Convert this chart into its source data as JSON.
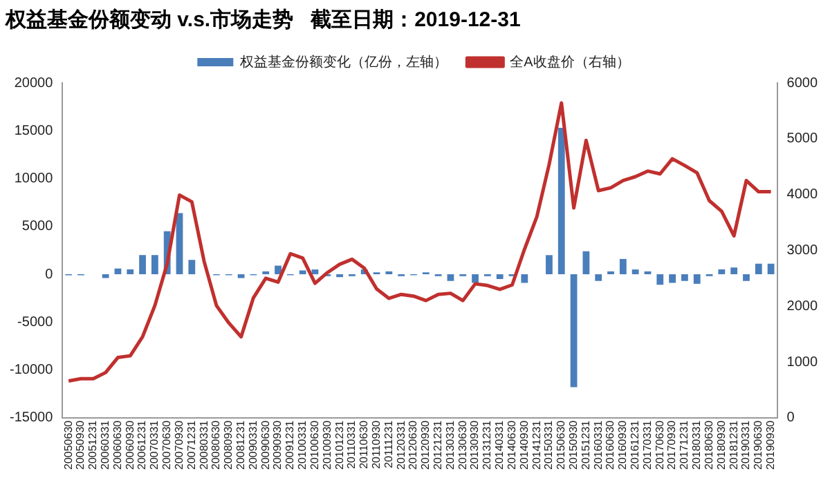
{
  "chart_data": {
    "type": "bar",
    "title": "权益基金份额变动 v.s.市场走势   截至日期：2019-12-31",
    "categories": [
      "20050630",
      "20050930",
      "20051231",
      "20060331",
      "20060630",
      "20060930",
      "20061231",
      "20070331",
      "20070630",
      "20070930",
      "20071231",
      "20080331",
      "20080630",
      "20080930",
      "20081231",
      "20090331",
      "20090630",
      "20090930",
      "20091231",
      "20100331",
      "20100630",
      "20100930",
      "20101231",
      "20110331",
      "20110630",
      "20110930",
      "20111231",
      "20120331",
      "20120630",
      "20120930",
      "20121231",
      "20130331",
      "20130630",
      "20130930",
      "20131231",
      "20140331",
      "20140630",
      "20140930",
      "20141231",
      "20150331",
      "20150630",
      "20150930",
      "20151231",
      "20160331",
      "20160630",
      "20160930",
      "20161231",
      "20170331",
      "20170630",
      "20170930",
      "20171231",
      "20180331",
      "20180630",
      "20180930",
      "20181231",
      "20190331",
      "20190630",
      "20190930"
    ],
    "series": [
      {
        "name": "权益基金份额变化（亿份，左轴）",
        "color": "#4a7ebb",
        "values": [
          -100,
          -100,
          0,
          -400,
          600,
          500,
          2000,
          2000,
          4500,
          6400,
          1500,
          0,
          -100,
          -100,
          -400,
          -100,
          300,
          900,
          -100,
          400,
          500,
          -200,
          -300,
          -200,
          500,
          200,
          300,
          -200,
          -100,
          200,
          -200,
          -700,
          -200,
          -900,
          -200,
          -500,
          -200,
          -900,
          0,
          2000,
          15300,
          -11800,
          2400,
          -700,
          300,
          1600,
          500,
          300,
          -1100,
          -900,
          -700,
          -1000,
          -200,
          500,
          700,
          -700,
          1100,
          1100
        ]
      },
      {
        "name": "全A收盘价（右轴）",
        "type": "line",
        "axis": "y2",
        "color": "#c0302e",
        "values": [
          660,
          700,
          700,
          810,
          1080,
          1110,
          1450,
          2010,
          2760,
          3990,
          3870,
          2800,
          2010,
          1700,
          1450,
          2150,
          2500,
          2430,
          2940,
          2860,
          2410,
          2600,
          2750,
          2840,
          2680,
          2310,
          2140,
          2210,
          2180,
          2100,
          2210,
          2230,
          2100,
          2400,
          2370,
          2300,
          2380,
          3020,
          3600,
          4540,
          5640,
          3760,
          4970,
          4070,
          4120,
          4250,
          4320,
          4420,
          4370,
          4640,
          4520,
          4390,
          3890,
          3700,
          3260,
          4250,
          4050,
          4050
        ]
      }
    ],
    "ylim": [
      -15000,
      20000
    ],
    "yticks": [
      -15000,
      -10000,
      -5000,
      0,
      5000,
      10000,
      15000,
      20000
    ],
    "y2lim": [
      0,
      6000
    ],
    "y2ticks": [
      0,
      1000,
      2000,
      3000,
      4000,
      5000,
      6000
    ],
    "grid": false,
    "legend": "top",
    "marker": "none"
  }
}
